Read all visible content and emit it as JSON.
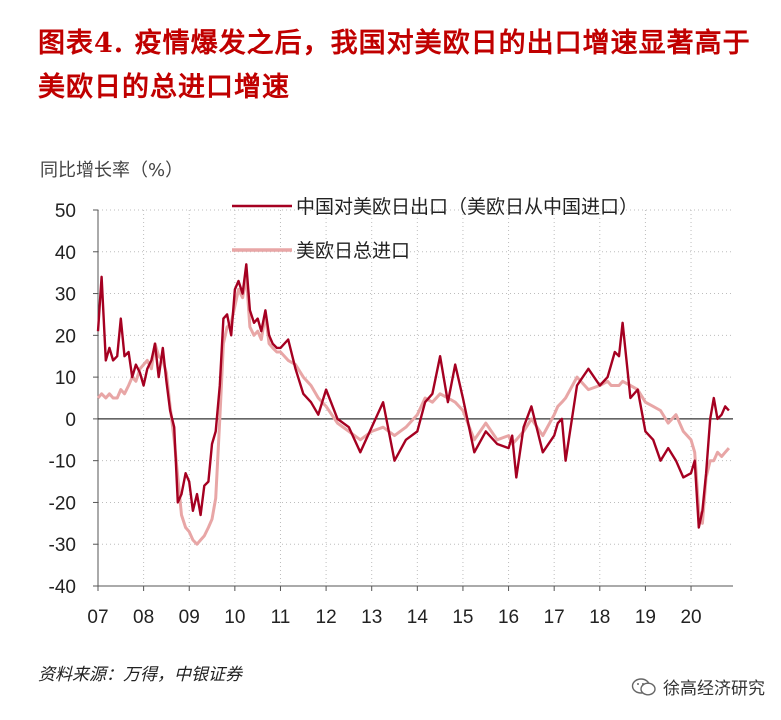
{
  "title": "图表4.  疫情爆发之后，我国对美欧日的出口增速显著高于美欧日的总进口增速",
  "source": "资料来源：万得，中银证券",
  "watermark": "徐高经济研究",
  "chart_data": {
    "type": "line",
    "ylabel": "同比增长率（%）",
    "ylim": [
      -40,
      50
    ],
    "yticks": [
      50,
      40,
      30,
      20,
      10,
      0,
      -10,
      -20,
      -30,
      -40
    ],
    "xlim": [
      2007.0,
      2020.92
    ],
    "xticks": [
      "07",
      "08",
      "09",
      "10",
      "11",
      "12",
      "13",
      "14",
      "15",
      "16",
      "17",
      "18",
      "19",
      "20"
    ],
    "grid": true,
    "legend_position": "top-right",
    "series": [
      {
        "name": "中国对美欧日出口（美欧日从中国进口）",
        "color": "#a50021",
        "x": [
          2007.0,
          2007.08,
          2007.17,
          2007.25,
          2007.33,
          2007.42,
          2007.5,
          2007.58,
          2007.67,
          2007.75,
          2007.83,
          2007.92,
          2008.0,
          2008.08,
          2008.17,
          2008.25,
          2008.33,
          2008.42,
          2008.5,
          2008.58,
          2008.67,
          2008.75,
          2008.83,
          2008.92,
          2009.0,
          2009.08,
          2009.17,
          2009.25,
          2009.33,
          2009.42,
          2009.5,
          2009.58,
          2009.67,
          2009.75,
          2009.83,
          2009.92,
          2010.0,
          2010.08,
          2010.17,
          2010.25,
          2010.33,
          2010.42,
          2010.5,
          2010.58,
          2010.67,
          2010.75,
          2010.83,
          2010.92,
          2011.0,
          2011.17,
          2011.33,
          2011.5,
          2011.67,
          2011.83,
          2012.0,
          2012.25,
          2012.5,
          2012.75,
          2013.0,
          2013.25,
          2013.5,
          2013.75,
          2014.0,
          2014.17,
          2014.33,
          2014.5,
          2014.67,
          2014.83,
          2015.0,
          2015.25,
          2015.5,
          2015.75,
          2016.0,
          2016.08,
          2016.17,
          2016.33,
          2016.5,
          2016.75,
          2017.0,
          2017.08,
          2017.17,
          2017.25,
          2017.5,
          2017.75,
          2018.0,
          2018.17,
          2018.25,
          2018.33,
          2018.42,
          2018.5,
          2018.67,
          2018.83,
          2019.0,
          2019.17,
          2019.33,
          2019.5,
          2019.67,
          2019.83,
          2020.0,
          2020.08,
          2020.17,
          2020.25,
          2020.33,
          2020.42,
          2020.5,
          2020.58,
          2020.67,
          2020.75,
          2020.83
        ],
        "values": [
          21,
          34,
          14,
          17,
          14,
          15,
          24,
          15,
          16,
          10,
          13,
          11,
          8,
          12,
          14,
          18,
          10,
          17,
          9,
          2,
          -2,
          -20,
          -18,
          -13,
          -15,
          -22,
          -18,
          -23,
          -16,
          -15,
          -6,
          -3,
          8,
          24,
          25,
          20,
          31,
          33,
          30,
          37,
          26,
          23,
          24,
          21,
          26,
          20,
          18,
          17,
          17,
          19,
          12,
          6,
          4,
          1,
          7,
          0,
          -2,
          -8,
          -2,
          4,
          -10,
          -5,
          -3,
          4,
          6,
          15,
          4,
          13,
          5,
          -8,
          -3,
          -6,
          -7,
          -4,
          -14,
          -2,
          3,
          -8,
          -4,
          -1,
          0,
          -10,
          8,
          12,
          8,
          10,
          13,
          16,
          15,
          23,
          5,
          7,
          -3,
          -5,
          -10,
          -7,
          -10,
          -14,
          -13,
          -10,
          -26,
          -22,
          -13,
          0,
          5,
          0,
          1,
          3,
          2
        ]
      },
      {
        "name": "美欧日总进口",
        "color": "#e8a6a6",
        "x": [
          2007.0,
          2007.08,
          2007.17,
          2007.25,
          2007.33,
          2007.42,
          2007.5,
          2007.58,
          2007.67,
          2007.75,
          2007.83,
          2007.92,
          2008.0,
          2008.08,
          2008.17,
          2008.25,
          2008.33,
          2008.42,
          2008.5,
          2008.58,
          2008.67,
          2008.75,
          2008.83,
          2008.92,
          2009.0,
          2009.08,
          2009.17,
          2009.25,
          2009.33,
          2009.42,
          2009.5,
          2009.58,
          2009.67,
          2009.75,
          2009.83,
          2009.92,
          2010.0,
          2010.08,
          2010.17,
          2010.25,
          2010.33,
          2010.42,
          2010.5,
          2010.58,
          2010.67,
          2010.75,
          2010.83,
          2010.92,
          2011.0,
          2011.17,
          2011.33,
          2011.5,
          2011.67,
          2011.83,
          2012.0,
          2012.25,
          2012.5,
          2012.75,
          2013.0,
          2013.25,
          2013.5,
          2013.75,
          2014.0,
          2014.17,
          2014.33,
          2014.5,
          2014.67,
          2014.83,
          2015.0,
          2015.25,
          2015.5,
          2015.75,
          2016.0,
          2016.08,
          2016.17,
          2016.33,
          2016.5,
          2016.75,
          2017.0,
          2017.08,
          2017.17,
          2017.25,
          2017.5,
          2017.75,
          2018.0,
          2018.17,
          2018.25,
          2018.33,
          2018.42,
          2018.5,
          2018.67,
          2018.83,
          2019.0,
          2019.17,
          2019.33,
          2019.5,
          2019.67,
          2019.83,
          2020.0,
          2020.08,
          2020.17,
          2020.25,
          2020.33,
          2020.42,
          2020.5,
          2020.58,
          2020.67,
          2020.75,
          2020.83
        ],
        "values": [
          5,
          6,
          5,
          6,
          5,
          5,
          7,
          6,
          8,
          10,
          9,
          12,
          13,
          14,
          12,
          18,
          15,
          14,
          11,
          3,
          -5,
          -14,
          -23,
          -26,
          -27,
          -29,
          -30,
          -29,
          -28,
          -26,
          -24,
          -19,
          0,
          18,
          22,
          23,
          27,
          31,
          29,
          34,
          22,
          20,
          21,
          19,
          25,
          18,
          17,
          16,
          16,
          14,
          13,
          10,
          8,
          5,
          3,
          -1,
          -3,
          -5,
          -3,
          -2,
          -4,
          -2,
          1,
          5,
          4,
          6,
          5,
          4,
          2,
          -5,
          -1,
          -5,
          -4,
          -6,
          -5,
          -3,
          0,
          -4,
          1,
          3,
          4,
          5,
          10,
          7,
          8,
          9,
          8,
          8,
          8,
          9,
          8,
          7,
          4,
          3,
          2,
          -1,
          1,
          -3,
          -5,
          -8,
          -22,
          -25,
          -14,
          -10,
          -10,
          -8,
          -9,
          -8,
          -7
        ]
      }
    ]
  }
}
